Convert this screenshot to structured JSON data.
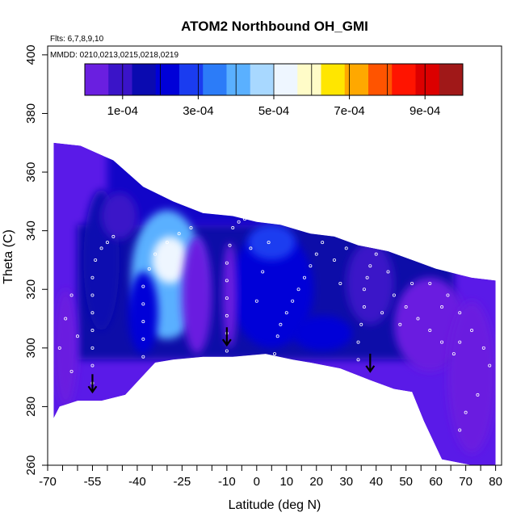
{
  "chart_data": {
    "type": "heatmap",
    "title": "ATOM2 Northbound OH_GMI",
    "note_flights": "Flts: 6,7,8,9,10",
    "note_dates": "MMDD: 0210,0213,0215,0218,0219",
    "xlabel": "Latitude (deg N)",
    "ylabel": "Theta (C)",
    "xlim": [
      -70,
      82
    ],
    "ylim": [
      260,
      403
    ],
    "x_ticks_labeled": [
      -70,
      -55,
      -40,
      -25,
      -10,
      0,
      10,
      20,
      30,
      40,
      50,
      60,
      70,
      80
    ],
    "x_tick_labels": [
      "-70",
      "-55",
      "-40",
      "-25",
      "-10",
      "0",
      "10",
      "20",
      "30",
      "40",
      "50",
      "60",
      "70",
      "80"
    ],
    "x_ticks_minor": [
      -65,
      -60,
      -50,
      -45,
      -35,
      -30,
      -20,
      -15,
      -5,
      5,
      15,
      25,
      35,
      45,
      55,
      65,
      75
    ],
    "y_ticks": [
      260,
      280,
      300,
      320,
      340,
      360,
      380,
      400
    ],
    "y_tick_labels": [
      "260",
      "280",
      "300",
      "320",
      "340",
      "360",
      "380",
      "400"
    ],
    "colorbar": {
      "colors": [
        "#6a1fe0",
        "#3a14c8",
        "#0a0ab0",
        "#0000d8",
        "#1a3cf0",
        "#2c7cf8",
        "#5ab0ff",
        "#a8d8ff",
        "#eef6ff",
        "#fffcc8",
        "#ffe600",
        "#ffa800",
        "#ff5400",
        "#ff1400",
        "#dc0000",
        "#a01818"
      ],
      "tick_values": [
        "1e-04",
        "3e-04",
        "5e-04",
        "7e-04",
        "9e-04"
      ],
      "tick_positions": [
        1,
        3,
        5,
        7,
        9
      ],
      "range": [
        0,
        0.001
      ],
      "bin_edges": [
        0.0001,
        0.0002,
        0.0003,
        0.0004,
        0.0005,
        0.0006,
        0.0007,
        0.0008,
        0.0009
      ]
    },
    "domain_top": [
      [
        -68,
        370
      ],
      [
        -59,
        369
      ],
      [
        -48,
        364
      ],
      [
        -38,
        355
      ],
      [
        -28,
        350
      ],
      [
        -18,
        346
      ],
      [
        -8,
        345
      ],
      [
        0,
        343
      ],
      [
        8,
        342
      ],
      [
        18,
        339
      ],
      [
        26,
        338
      ],
      [
        34,
        335
      ],
      [
        44,
        333
      ],
      [
        52,
        330
      ],
      [
        60,
        327
      ],
      [
        68,
        325
      ],
      [
        72,
        324
      ],
      [
        80,
        323
      ]
    ],
    "domain_bottom": [
      [
        80,
        260
      ],
      [
        72,
        260
      ],
      [
        62,
        262
      ],
      [
        56,
        275
      ],
      [
        52,
        285
      ],
      [
        46,
        286
      ],
      [
        38,
        289
      ],
      [
        28,
        293
      ],
      [
        18,
        295
      ],
      [
        12,
        296
      ],
      [
        3,
        298
      ],
      [
        -8,
        297
      ],
      [
        -18,
        297
      ],
      [
        -28,
        296
      ],
      [
        -34,
        295
      ],
      [
        -44,
        284
      ],
      [
        -52,
        282
      ],
      [
        -60,
        282
      ],
      [
        -66,
        280
      ],
      [
        -68,
        276
      ]
    ],
    "arrows": [
      [
        -55,
        285
      ],
      [
        -10,
        301
      ],
      [
        38,
        292
      ]
    ],
    "regions": [
      {
        "shape": "ellipse",
        "cx": -30,
        "cy": 325,
        "rx": 12,
        "ry": 22,
        "value": 0.00042
      },
      {
        "shape": "ellipse",
        "cx": -29,
        "cy": 330,
        "rx": 6,
        "ry": 8,
        "value": 0.00055
      },
      {
        "shape": "ellipse",
        "cx": -52,
        "cy": 330,
        "rx": 6,
        "ry": 24,
        "value": 0.00018
      },
      {
        "shape": "ellipse",
        "cx": -38,
        "cy": 312,
        "rx": 5,
        "ry": 14,
        "value": 0.00024
      },
      {
        "shape": "ellipse",
        "cx": 5,
        "cy": 320,
        "rx": 14,
        "ry": 20,
        "value": 0.00022
      },
      {
        "shape": "ellipse",
        "cx": 5,
        "cy": 336,
        "rx": 8,
        "ry": 6,
        "value": 0.00031
      },
      {
        "shape": "ellipse",
        "cx": 22,
        "cy": 305,
        "rx": 10,
        "ry": 6,
        "value": 0.00024
      },
      {
        "shape": "ellipse",
        "cx": 58,
        "cy": 308,
        "rx": 12,
        "ry": 16,
        "value": 6e-05
      },
      {
        "shape": "ellipse",
        "cx": 38,
        "cy": 322,
        "rx": 8,
        "ry": 14,
        "value": 7e-05
      },
      {
        "shape": "ellipse",
        "cx": -64,
        "cy": 300,
        "rx": 4,
        "ry": 20,
        "value": 6e-05
      },
      {
        "shape": "ellipse",
        "cx": -20,
        "cy": 318,
        "rx": 5,
        "ry": 20,
        "value": 5e-05
      },
      {
        "shape": "ellipse",
        "cx": -9,
        "cy": 318,
        "rx": 2.5,
        "ry": 18,
        "value": 4e-05
      },
      {
        "shape": "ellipse",
        "cx": 72,
        "cy": 290,
        "rx": 8,
        "ry": 26,
        "value": 2e-05
      },
      {
        "shape": "ellipse",
        "cx": -46,
        "cy": 345,
        "rx": 6,
        "ry": 8,
        "value": 0.0001
      }
    ],
    "sample_points": [
      [
        -55,
        288
      ],
      [
        -55,
        294
      ],
      [
        -55,
        300
      ],
      [
        -55,
        306
      ],
      [
        -55,
        312
      ],
      [
        -55,
        318
      ],
      [
        -55,
        324
      ],
      [
        -54,
        330
      ],
      [
        -52,
        334
      ],
      [
        -50,
        336
      ],
      [
        -48,
        338
      ],
      [
        -38,
        297
      ],
      [
        -38,
        303
      ],
      [
        -38,
        309
      ],
      [
        -38,
        315
      ],
      [
        -38,
        321
      ],
      [
        -36,
        327
      ],
      [
        -34,
        332
      ],
      [
        -30,
        336
      ],
      [
        -26,
        339
      ],
      [
        -22,
        341
      ],
      [
        -10,
        299
      ],
      [
        -10,
        305
      ],
      [
        -10,
        311
      ],
      [
        -10,
        317
      ],
      [
        -10,
        323
      ],
      [
        -10,
        329
      ],
      [
        -9,
        335
      ],
      [
        -8,
        341
      ],
      [
        -6,
        343
      ],
      [
        -4,
        344
      ],
      [
        6,
        298
      ],
      [
        7,
        304
      ],
      [
        8,
        308
      ],
      [
        10,
        312
      ],
      [
        12,
        316
      ],
      [
        14,
        320
      ],
      [
        16,
        324
      ],
      [
        18,
        328
      ],
      [
        20,
        332
      ],
      [
        22,
        336
      ],
      [
        34,
        296
      ],
      [
        34,
        302
      ],
      [
        35,
        308
      ],
      [
        36,
        314
      ],
      [
        36,
        320
      ],
      [
        37,
        324
      ],
      [
        38,
        328
      ],
      [
        40,
        332
      ],
      [
        46,
        318
      ],
      [
        50,
        314
      ],
      [
        54,
        310
      ],
      [
        58,
        306
      ],
      [
        62,
        302
      ],
      [
        66,
        298
      ],
      [
        68,
        302
      ],
      [
        64,
        318
      ],
      [
        68,
        312
      ],
      [
        72,
        306
      ],
      [
        76,
        300
      ],
      [
        78,
        294
      ],
      [
        74,
        284
      ],
      [
        70,
        278
      ],
      [
        68,
        272
      ],
      [
        -66,
        300
      ],
      [
        -62,
        292
      ],
      [
        -60,
        304
      ],
      [
        -64,
        310
      ],
      [
        -62,
        318
      ],
      [
        26,
        330
      ],
      [
        30,
        334
      ],
      [
        28,
        322
      ],
      [
        42,
        312
      ],
      [
        44,
        326
      ],
      [
        48,
        308
      ],
      [
        52,
        322
      ],
      [
        58,
        322
      ],
      [
        62,
        314
      ],
      [
        0,
        316
      ],
      [
        2,
        326
      ],
      [
        -2,
        334
      ],
      [
        4,
        336
      ]
    ]
  }
}
